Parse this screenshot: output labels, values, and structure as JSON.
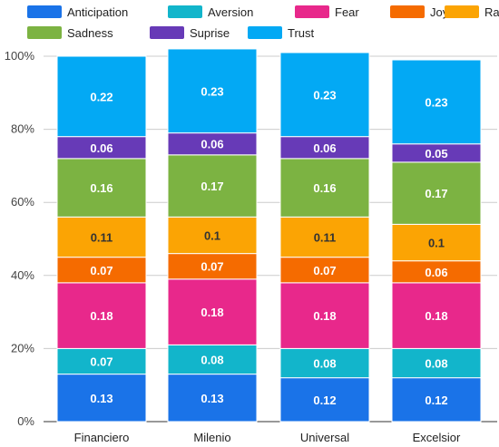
{
  "chart_data": {
    "type": "bar",
    "stacked": true,
    "normalized": true,
    "categories": [
      "Financiero",
      "Milenio",
      "Universal",
      "Excelsior"
    ],
    "series": [
      {
        "name": "Anticipation",
        "color": "#1a73e8",
        "label_color": "#ffffff",
        "values": [
          0.13,
          0.13,
          0.12,
          0.12
        ]
      },
      {
        "name": "Aversion",
        "color": "#12b5cb",
        "label_color": "#ffffff",
        "values": [
          0.07,
          0.08,
          0.08,
          0.08
        ]
      },
      {
        "name": "Fear",
        "color": "#e8288b",
        "label_color": "#ffffff",
        "values": [
          0.18,
          0.18,
          0.18,
          0.18
        ]
      },
      {
        "name": "Joy",
        "color": "#f56b00",
        "label_color": "#ffffff",
        "values": [
          0.07,
          0.07,
          0.07,
          0.06
        ]
      },
      {
        "name": "Rage",
        "color": "#fba404",
        "label_color": "#333333",
        "values": [
          0.11,
          0.1,
          0.11,
          0.1
        ]
      },
      {
        "name": "Sadness",
        "color": "#7cb342",
        "label_color": "#ffffff",
        "values": [
          0.16,
          0.17,
          0.16,
          0.17
        ]
      },
      {
        "name": "Suprise",
        "color": "#673ab7",
        "label_color": "#ffffff",
        "values": [
          0.06,
          0.06,
          0.06,
          0.05
        ]
      },
      {
        "name": "Trust",
        "color": "#03a9f4",
        "label_color": "#ffffff",
        "values": [
          0.22,
          0.23,
          0.23,
          0.23
        ]
      }
    ],
    "y_ticks": [
      "0%",
      "20%",
      "40%",
      "60%",
      "80%",
      "100%"
    ],
    "ylim": [
      0,
      1
    ],
    "grid": true,
    "legend_position": "top"
  }
}
